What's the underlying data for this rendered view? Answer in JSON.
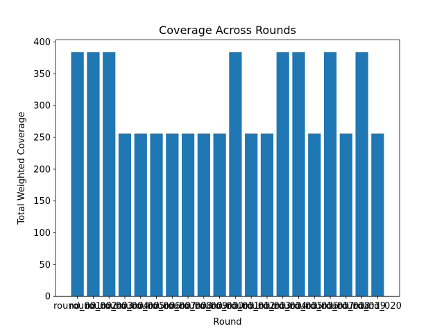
{
  "chart_data": {
    "type": "bar",
    "title": "Coverage Across Rounds",
    "xlabel": "Round",
    "ylabel": "Total Weighted Coverage",
    "categories": [
      "round_001",
      "round_002",
      "round_003",
      "round_004",
      "round_005",
      "round_006",
      "round_007",
      "round_008",
      "round_009",
      "round_010",
      "round_011",
      "round_012",
      "round_013",
      "round_014",
      "round_015",
      "round_016",
      "round_017",
      "round_018",
      "round_019",
      "round_020"
    ],
    "values": [
      384,
      384,
      384,
      256,
      256,
      256,
      256,
      256,
      256,
      256,
      384,
      256,
      256,
      384,
      384,
      256,
      384,
      256,
      384,
      256
    ],
    "ylim": [
      0,
      403.2
    ],
    "yticks": [
      0,
      50,
      100,
      150,
      200,
      250,
      300,
      350,
      400
    ],
    "grid": false,
    "legend": "none",
    "bar_color": "#1f77b4"
  }
}
